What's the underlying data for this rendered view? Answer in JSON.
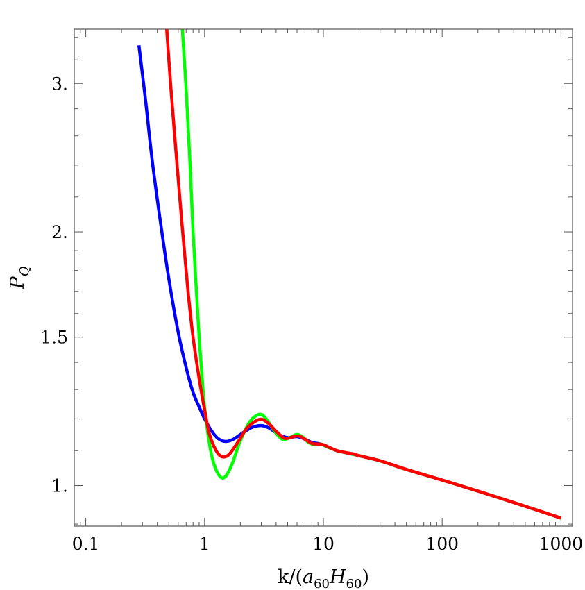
{
  "chart_data": {
    "type": "line",
    "x_scale": "log",
    "y_scale": "log",
    "xlim": [
      0.08,
      1250
    ],
    "ylim": [
      0.895,
      3.48
    ],
    "grid": false,
    "legend": "none",
    "xlabel": {
      "prefix": "k/(",
      "a": "a",
      "a_sub": "60",
      "H": "H",
      "H_sub": "60",
      "suffix": ")"
    },
    "ylabel": {
      "main": "P",
      "sub": "Q"
    },
    "x_ticks": [
      {
        "value": 0.1,
        "label": "0.1"
      },
      {
        "value": 1,
        "label": "1"
      },
      {
        "value": 10,
        "label": "10"
      },
      {
        "value": 100,
        "label": "100"
      },
      {
        "value": 1000,
        "label": "1000"
      }
    ],
    "y_ticks": [
      {
        "value": 1.0,
        "label": "1."
      },
      {
        "value": 1.5,
        "label": "1.5"
      },
      {
        "value": 2.0,
        "label": "2."
      },
      {
        "value": 3.0,
        "label": "3."
      }
    ],
    "series": [
      {
        "color": "#0000ff",
        "points": [
          [
            0.28,
            3.33
          ],
          [
            0.32,
            2.85
          ],
          [
            0.36,
            2.45
          ],
          [
            0.42,
            2.08
          ],
          [
            0.5,
            1.76
          ],
          [
            0.6,
            1.52
          ],
          [
            0.7,
            1.38
          ],
          [
            0.8,
            1.29
          ],
          [
            0.9,
            1.24
          ],
          [
            1.0,
            1.2
          ],
          [
            1.15,
            1.16
          ],
          [
            1.3,
            1.137
          ],
          [
            1.5,
            1.128
          ],
          [
            1.75,
            1.135
          ],
          [
            2.1,
            1.155
          ],
          [
            2.5,
            1.172
          ],
          [
            3.0,
            1.178
          ],
          [
            3.5,
            1.17
          ],
          [
            4.2,
            1.15
          ],
          [
            5.0,
            1.14
          ],
          [
            6.0,
            1.143
          ],
          [
            7.0,
            1.135
          ],
          [
            8.0,
            1.125
          ],
          [
            9.5,
            1.12
          ],
          [
            11.0,
            1.11
          ],
          [
            13.0,
            1.1
          ],
          [
            15.0,
            1.095
          ],
          [
            20.0,
            1.085
          ],
          [
            30.0,
            1.07
          ],
          [
            50.0,
            1.045
          ],
          [
            100.0,
            1.015
          ],
          [
            200.0,
            0.985
          ],
          [
            500.0,
            0.945
          ],
          [
            1000.0,
            0.915
          ]
        ]
      },
      {
        "color": "#00ff00",
        "points": [
          [
            0.65,
            3.48
          ],
          [
            0.7,
            2.95
          ],
          [
            0.75,
            2.45
          ],
          [
            0.8,
            2.0
          ],
          [
            0.85,
            1.72
          ],
          [
            0.9,
            1.5
          ],
          [
            0.95,
            1.35
          ],
          [
            1.0,
            1.24
          ],
          [
            1.1,
            1.12
          ],
          [
            1.2,
            1.06
          ],
          [
            1.35,
            1.025
          ],
          [
            1.5,
            1.025
          ],
          [
            1.7,
            1.06
          ],
          [
            2.0,
            1.13
          ],
          [
            2.4,
            1.19
          ],
          [
            2.9,
            1.215
          ],
          [
            3.3,
            1.2
          ],
          [
            3.8,
            1.165
          ],
          [
            4.5,
            1.135
          ],
          [
            5.2,
            1.14
          ],
          [
            6.0,
            1.15
          ],
          [
            6.8,
            1.14
          ],
          [
            7.5,
            1.125
          ],
          [
            8.5,
            1.118
          ],
          [
            9.5,
            1.12
          ],
          [
            11.0,
            1.11
          ],
          [
            13.0,
            1.1
          ],
          [
            15.0,
            1.095
          ],
          [
            20.0,
            1.085
          ],
          [
            30.0,
            1.07
          ],
          [
            50.0,
            1.045
          ],
          [
            100.0,
            1.015
          ],
          [
            200.0,
            0.985
          ],
          [
            500.0,
            0.945
          ],
          [
            1000.0,
            0.915
          ]
        ]
      },
      {
        "color": "#ff0000",
        "points": [
          [
            0.48,
            3.48
          ],
          [
            0.52,
            2.97
          ],
          [
            0.58,
            2.45
          ],
          [
            0.65,
            2.02
          ],
          [
            0.72,
            1.72
          ],
          [
            0.8,
            1.5
          ],
          [
            0.9,
            1.34
          ],
          [
            1.0,
            1.23
          ],
          [
            1.1,
            1.15
          ],
          [
            1.25,
            1.1
          ],
          [
            1.4,
            1.082
          ],
          [
            1.6,
            1.088
          ],
          [
            1.9,
            1.125
          ],
          [
            2.3,
            1.172
          ],
          [
            2.9,
            1.198
          ],
          [
            3.4,
            1.187
          ],
          [
            4.0,
            1.16
          ],
          [
            4.7,
            1.138
          ],
          [
            5.5,
            1.142
          ],
          [
            6.2,
            1.145
          ],
          [
            7.0,
            1.135
          ],
          [
            8.0,
            1.122
          ],
          [
            9.0,
            1.12
          ],
          [
            10.0,
            1.118
          ],
          [
            11.5,
            1.108
          ],
          [
            13.0,
            1.1
          ],
          [
            15.0,
            1.095
          ],
          [
            18.0,
            1.09
          ],
          [
            20.0,
            1.085
          ],
          [
            30.0,
            1.07
          ],
          [
            50.0,
            1.045
          ],
          [
            100.0,
            1.015
          ],
          [
            200.0,
            0.985
          ],
          [
            500.0,
            0.945
          ],
          [
            1000.0,
            0.915
          ]
        ]
      }
    ]
  }
}
